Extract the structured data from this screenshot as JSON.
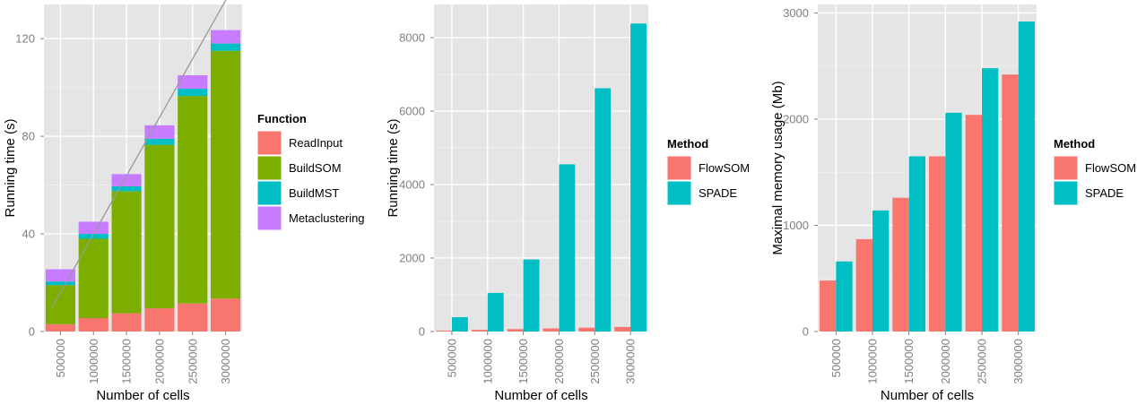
{
  "colors": {
    "panel": "#e5e5e5",
    "grid_major": "#ffffff",
    "grid_minor": "#f2f2f2",
    "ReadInput": "#f8766d",
    "BuildSOM": "#7cae00",
    "BuildMST": "#00bfc4",
    "Metaclustering": "#c77cff",
    "FlowSOM": "#f8766d",
    "SPADE": "#00bfc4",
    "reference_line": "#999999"
  },
  "chart_data": [
    {
      "type": "bar",
      "stacked": true,
      "xlabel": "Number of cells",
      "ylabel": "Running time (s)",
      "ylim": [
        0,
        134
      ],
      "yticks": [
        0,
        40,
        80,
        120
      ],
      "categories": [
        "500000",
        "1000000",
        "1500000",
        "2000000",
        "2500000",
        "3000000"
      ],
      "legend_title": "Function",
      "legend_position": "right",
      "series": [
        {
          "name": "ReadInput",
          "values": [
            3,
            5.5,
            7.5,
            9.5,
            11.5,
            13.5
          ]
        },
        {
          "name": "BuildSOM",
          "values": [
            16,
            32.5,
            50,
            67,
            85,
            101.5
          ]
        },
        {
          "name": "BuildMST",
          "values": [
            1.5,
            2,
            2,
            2.5,
            3,
            3
          ]
        },
        {
          "name": "Metaclustering",
          "values": [
            5,
            5,
            5,
            5.5,
            5.5,
            5.5
          ]
        }
      ],
      "reference_line": {
        "x": [
          0.25,
          5.6
        ],
        "y": [
          10,
          138
        ]
      }
    },
    {
      "type": "bar",
      "grouped": true,
      "xlabel": "Number of cells",
      "ylabel": "Running time (s)",
      "ylim": [
        0,
        8900
      ],
      "yticks": [
        0,
        2000,
        4000,
        6000,
        8000
      ],
      "categories": [
        "500000",
        "1000000",
        "1500000",
        "2000000",
        "2500000",
        "3000000"
      ],
      "legend_title": "Method",
      "legend_position": "right",
      "series": [
        {
          "name": "FlowSOM",
          "values": [
            25,
            45,
            65,
            85,
            105,
            125
          ]
        },
        {
          "name": "SPADE",
          "values": [
            390,
            1050,
            1960,
            4550,
            6620,
            8380
          ]
        }
      ]
    },
    {
      "type": "bar",
      "grouped": true,
      "xlabel": "Number of cells",
      "ylabel": "Maximal memory usage (Mb)",
      "ylim": [
        0,
        3080
      ],
      "yticks": [
        0,
        1000,
        2000,
        3000
      ],
      "categories": [
        "500000",
        "1000000",
        "1500000",
        "2000000",
        "2500000",
        "3000000"
      ],
      "legend_title": "Method",
      "legend_position": "right",
      "series": [
        {
          "name": "FlowSOM",
          "values": [
            480,
            870,
            1260,
            1650,
            2040,
            2420
          ]
        },
        {
          "name": "SPADE",
          "values": [
            660,
            1140,
            1650,
            2060,
            2480,
            2920
          ]
        }
      ]
    }
  ]
}
